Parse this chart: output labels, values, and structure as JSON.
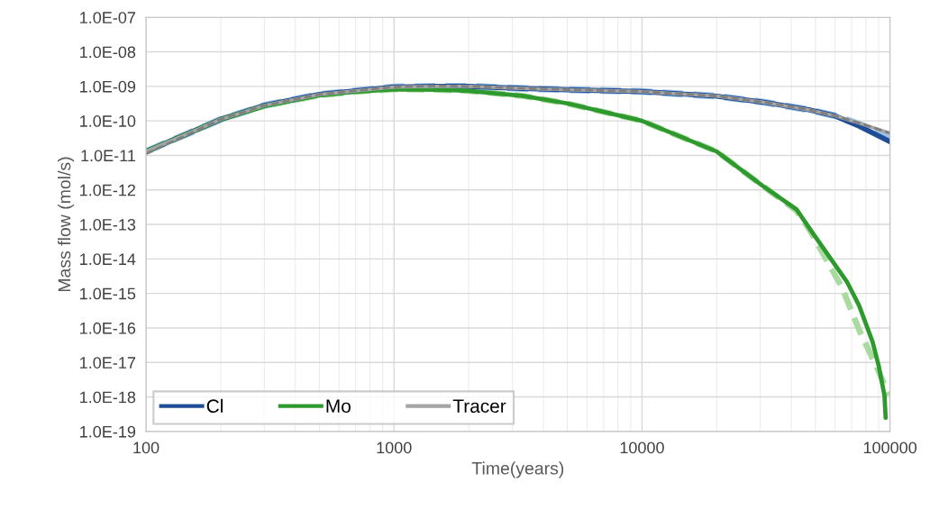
{
  "chart_data": {
    "type": "line",
    "xlabel": "Time(years)",
    "ylabel": "Mass flow (mol/s)",
    "log": "xy",
    "xlim": [
      100,
      100000
    ],
    "xticks": [
      100,
      1000,
      10000,
      100000
    ],
    "ylim": [
      1e-19,
      1e-07
    ],
    "yticks": [
      {
        "value": 1e-19,
        "label": "1.0E-19"
      },
      {
        "value": 1e-18,
        "label": "1.0E-18"
      },
      {
        "value": 1e-17,
        "label": "1.0E-17"
      },
      {
        "value": 1e-16,
        "label": "1.0E-16"
      },
      {
        "value": 1e-15,
        "label": "1.0E-15"
      },
      {
        "value": 1e-14,
        "label": "1.0E-14"
      },
      {
        "value": 1e-13,
        "label": "1.0E-13"
      },
      {
        "value": 1e-12,
        "label": "1.0E-12"
      },
      {
        "value": 1e-11,
        "label": "1.0E-11"
      },
      {
        "value": 1e-10,
        "label": "1.0E-10"
      },
      {
        "value": 1e-09,
        "label": "1.0E-09"
      },
      {
        "value": 1e-08,
        "label": "1.0E-08"
      },
      {
        "value": 1e-07,
        "label": "1.0E-07"
      }
    ],
    "grid": true,
    "legend": "bottom left",
    "marker": "none",
    "series": [
      {
        "color": "#9dc3e6",
        "line_style": "dashed",
        "x": [
          100,
          150,
          200,
          300,
          500,
          700,
          1000,
          1500,
          2000,
          3300,
          5000,
          10000,
          20000,
          30700,
          47000,
          60000,
          75000,
          100000
        ],
        "values": [
          1.3e-11,
          4.5e-11,
          1.1e-10,
          2.8e-10,
          5.8e-10,
          7.4e-10,
          9.6e-10,
          1e-09,
          1e-09,
          8.7e-10,
          8e-10,
          7.1e-10,
          5.2e-10,
          3.5e-10,
          2.1e-10,
          1.4e-10,
          8e-11,
          3.5e-11
        ]
      },
      {
        "color": "#a9dba0",
        "line_style": "dashed",
        "x": [
          100,
          150,
          200,
          300,
          500,
          700,
          1000,
          1500,
          2000,
          3300,
          5000,
          10000,
          20000,
          30700,
          42000,
          48000,
          64000,
          75000,
          90000,
          99000
        ],
        "values": [
          1.3e-11,
          4.5e-11,
          1.1e-10,
          2.7e-10,
          5.5e-10,
          7e-10,
          8.2e-10,
          8e-10,
          7.4e-10,
          5.3e-10,
          3.2e-10,
          1e-10,
          1.3e-11,
          1.3e-12,
          2.5e-13,
          6e-14,
          1.5e-15,
          8.9e-17,
          5.5e-18,
          1.1e-18
        ]
      },
      {
        "name": "Cl",
        "color": "#1f4e96",
        "line_style": "solid",
        "x": [
          100,
          150,
          200,
          300,
          500,
          700,
          1000,
          1500,
          2000,
          3300,
          5000,
          10000,
          20000,
          30700,
          47000,
          60000,
          75000,
          100000
        ],
        "values": [
          1.3e-11,
          4.5e-11,
          1.1e-10,
          2.8e-10,
          5.8e-10,
          7.4e-10,
          9.6e-10,
          1e-09,
          1e-09,
          8.7e-10,
          8e-10,
          7.1e-10,
          5.2e-10,
          3.5e-10,
          2.1e-10,
          1.4e-10,
          7.1e-11,
          2.5e-11
        ]
      },
      {
        "name": "Mo",
        "color": "#2e9a2e",
        "line_style": "solid",
        "x": [
          100,
          150,
          200,
          300,
          500,
          700,
          1000,
          1500,
          2000,
          3300,
          5000,
          10000,
          20000,
          30700,
          42000,
          48000,
          67000,
          75000,
          85000,
          90000,
          95000,
          96000
        ],
        "values": [
          1.3e-11,
          4.5e-11,
          1.1e-10,
          2.7e-10,
          5.5e-10,
          7e-10,
          8.2e-10,
          8e-10,
          7.4e-10,
          5.3e-10,
          3.2e-10,
          1e-10,
          1.3e-11,
          1.3e-12,
          2.7e-13,
          6.6e-14,
          2.2e-15,
          4.5e-16,
          4e-17,
          8.1e-18,
          1.1e-18,
          2.5e-19
        ]
      },
      {
        "name": "Tracer",
        "color": "#a5a5a5",
        "line_style": "solid",
        "x": [
          100,
          150,
          200,
          300,
          500,
          700,
          1000,
          1500,
          2000,
          3300,
          5000,
          10000,
          20000,
          30700,
          47000,
          60000,
          75000,
          100000
        ],
        "values": [
          1.3e-11,
          4.5e-11,
          1.1e-10,
          2.8e-10,
          5.8e-10,
          7.4e-10,
          9.6e-10,
          1e-09,
          1e-09,
          8.7e-10,
          8e-10,
          7.1e-10,
          5.2e-10,
          3.5e-10,
          2.1e-10,
          1.4e-10,
          8.7e-11,
          4.4e-11
        ]
      },
      {
        "color": "#7f7f7f",
        "line_style": "dashed",
        "x": [
          100,
          150,
          200,
          300,
          500,
          700,
          1000,
          1500,
          2000,
          3300,
          5000,
          10000,
          20000,
          30700,
          47000,
          60000,
          75000,
          100000
        ],
        "values": [
          1.1e-11,
          4.3e-11,
          1.1e-10,
          2.8e-10,
          5.8e-10,
          7.4e-10,
          9.6e-10,
          1.04e-09,
          1e-09,
          8.7e-10,
          8e-10,
          7.1e-10,
          5.2e-10,
          3.5e-10,
          2.1e-10,
          1.4e-10,
          8.7e-11,
          4.4e-11
        ]
      }
    ]
  }
}
